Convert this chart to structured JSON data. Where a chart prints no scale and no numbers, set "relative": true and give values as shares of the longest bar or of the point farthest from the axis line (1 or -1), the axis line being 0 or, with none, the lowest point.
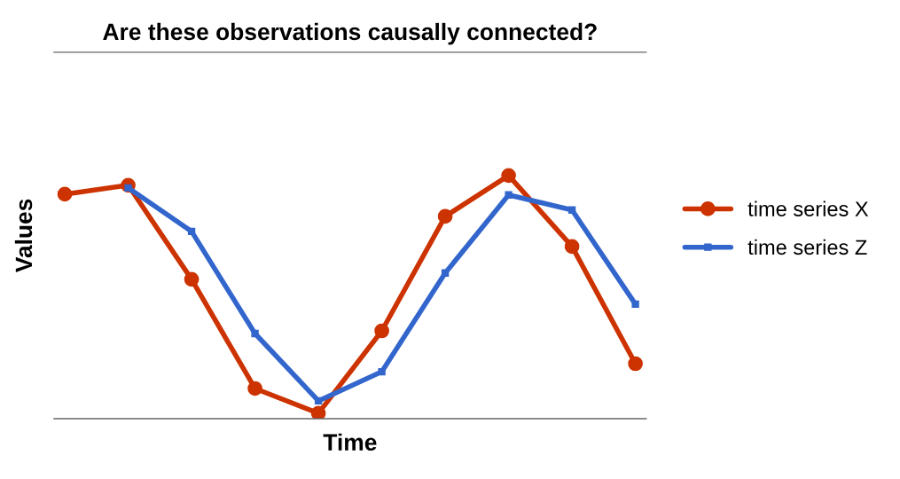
{
  "chart_data": {
    "type": "line",
    "title": "Are these observations causally connected?",
    "xlabel": "Time",
    "ylabel": "Values",
    "relative": true,
    "categories": [
      null,
      null,
      null,
      null,
      null,
      null,
      null,
      null,
      null,
      null
    ],
    "series": [
      {
        "name": "time series X",
        "color": "#cc3300",
        "marker": "circle",
        "values": [
          0.923,
          0.96,
          0.573,
          0.124,
          0.022,
          0.361,
          0.832,
          1,
          0.708,
          0.226
        ]
      },
      {
        "name": "time series Z",
        "color": "#3366cc",
        "marker": "square",
        "values": [
          null,
          0.949,
          0.77,
          0.35,
          0.073,
          0.193,
          0.599,
          0.92,
          0.858,
          0.471
        ]
      }
    ],
    "legend": "right",
    "tick_labels": false,
    "grid": false,
    "line_style": "solid"
  }
}
